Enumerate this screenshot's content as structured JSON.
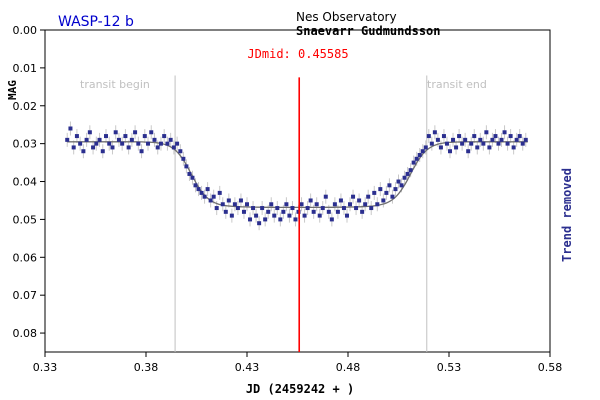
{
  "chart_data": {
    "type": "scatter",
    "title": "WASP-12 b",
    "observatory": "Nes Observatory",
    "observer": "Snaevarr Gudmundsson",
    "midline_label": "JDmid: 0.45585",
    "xlabel": "JD (2459242 + )",
    "ylabel": "MAG",
    "right_label": "Trend removed",
    "transit_begin_label": "transit begin",
    "transit_end_label": "transit end",
    "xlim": [
      0.33,
      0.58
    ],
    "ylim": [
      0.0,
      0.085
    ],
    "y_inverted": true,
    "x_ticks": [
      "0.33",
      "0.38",
      "0.43",
      "0.48",
      "0.53",
      "0.58"
    ],
    "y_ticks": [
      "0.00",
      "0.01",
      "0.02",
      "0.03",
      "0.04",
      "0.05",
      "0.06",
      "0.07",
      "0.08"
    ],
    "transit_begin": 0.3944,
    "transit_end": 0.519,
    "jd_mid": 0.45585,
    "baseline_mag": 0.0295,
    "depth_mag": 0.0465,
    "colors": {
      "points": "#2b2f8f",
      "errorbars": "#c8c8c8",
      "model": "#707070",
      "midline": "#ff0000",
      "transit_lines": "#c0c0c0",
      "title": "#0000cc",
      "right_label": "#2b2f8f"
    },
    "points": [
      [
        0.341,
        0.029
      ],
      [
        0.3426,
        0.026
      ],
      [
        0.3442,
        0.031
      ],
      [
        0.3458,
        0.028
      ],
      [
        0.3474,
        0.03
      ],
      [
        0.349,
        0.032
      ],
      [
        0.3506,
        0.029
      ],
      [
        0.3522,
        0.027
      ],
      [
        0.3538,
        0.031
      ],
      [
        0.3554,
        0.03
      ],
      [
        0.357,
        0.029
      ],
      [
        0.3586,
        0.032
      ],
      [
        0.3602,
        0.028
      ],
      [
        0.3618,
        0.03
      ],
      [
        0.3634,
        0.031
      ],
      [
        0.365,
        0.027
      ],
      [
        0.3666,
        0.029
      ],
      [
        0.3682,
        0.03
      ],
      [
        0.3698,
        0.028
      ],
      [
        0.3714,
        0.031
      ],
      [
        0.373,
        0.029
      ],
      [
        0.3746,
        0.027
      ],
      [
        0.3762,
        0.03
      ],
      [
        0.3778,
        0.032
      ],
      [
        0.3794,
        0.028
      ],
      [
        0.381,
        0.03
      ],
      [
        0.3826,
        0.027
      ],
      [
        0.3842,
        0.029
      ],
      [
        0.3858,
        0.031
      ],
      [
        0.3874,
        0.03
      ],
      [
        0.389,
        0.028
      ],
      [
        0.3906,
        0.03
      ],
      [
        0.3922,
        0.029
      ],
      [
        0.3938,
        0.031
      ],
      [
        0.3954,
        0.03
      ],
      [
        0.397,
        0.032
      ],
      [
        0.3985,
        0.034
      ],
      [
        0.4,
        0.036
      ],
      [
        0.4015,
        0.038
      ],
      [
        0.403,
        0.039
      ],
      [
        0.4045,
        0.041
      ],
      [
        0.406,
        0.042
      ],
      [
        0.4075,
        0.043
      ],
      [
        0.409,
        0.044
      ],
      [
        0.4105,
        0.042
      ],
      [
        0.412,
        0.045
      ],
      [
        0.4135,
        0.044
      ],
      [
        0.415,
        0.047
      ],
      [
        0.4165,
        0.043
      ],
      [
        0.418,
        0.046
      ],
      [
        0.4195,
        0.048
      ],
      [
        0.421,
        0.045
      ],
      [
        0.4225,
        0.049
      ],
      [
        0.424,
        0.046
      ],
      [
        0.4255,
        0.047
      ],
      [
        0.427,
        0.045
      ],
      [
        0.4285,
        0.048
      ],
      [
        0.43,
        0.046
      ],
      [
        0.4315,
        0.05
      ],
      [
        0.433,
        0.047
      ],
      [
        0.4345,
        0.049
      ],
      [
        0.436,
        0.051
      ],
      [
        0.4375,
        0.047
      ],
      [
        0.439,
        0.05
      ],
      [
        0.4405,
        0.048
      ],
      [
        0.442,
        0.046
      ],
      [
        0.4435,
        0.049
      ],
      [
        0.445,
        0.047
      ],
      [
        0.4465,
        0.05
      ],
      [
        0.448,
        0.048
      ],
      [
        0.4495,
        0.046
      ],
      [
        0.451,
        0.049
      ],
      [
        0.4525,
        0.047
      ],
      [
        0.454,
        0.05
      ],
      [
        0.4555,
        0.048
      ],
      [
        0.457,
        0.046
      ],
      [
        0.4585,
        0.049
      ],
      [
        0.46,
        0.047
      ],
      [
        0.4615,
        0.045
      ],
      [
        0.463,
        0.048
      ],
      [
        0.4645,
        0.046
      ],
      [
        0.466,
        0.049
      ],
      [
        0.4675,
        0.047
      ],
      [
        0.469,
        0.044
      ],
      [
        0.4705,
        0.048
      ],
      [
        0.472,
        0.05
      ],
      [
        0.4735,
        0.046
      ],
      [
        0.475,
        0.048
      ],
      [
        0.4765,
        0.045
      ],
      [
        0.478,
        0.047
      ],
      [
        0.4795,
        0.049
      ],
      [
        0.481,
        0.046
      ],
      [
        0.4825,
        0.044
      ],
      [
        0.484,
        0.047
      ],
      [
        0.4855,
        0.045
      ],
      [
        0.487,
        0.048
      ],
      [
        0.4885,
        0.046
      ],
      [
        0.49,
        0.044
      ],
      [
        0.4915,
        0.047
      ],
      [
        0.493,
        0.043
      ],
      [
        0.4945,
        0.046
      ],
      [
        0.496,
        0.042
      ],
      [
        0.4975,
        0.045
      ],
      [
        0.499,
        0.043
      ],
      [
        0.5005,
        0.041
      ],
      [
        0.502,
        0.044
      ],
      [
        0.5035,
        0.042
      ],
      [
        0.505,
        0.04
      ],
      [
        0.5065,
        0.041
      ],
      [
        0.508,
        0.039
      ],
      [
        0.5095,
        0.038
      ],
      [
        0.511,
        0.037
      ],
      [
        0.5125,
        0.035
      ],
      [
        0.514,
        0.034
      ],
      [
        0.5155,
        0.033
      ],
      [
        0.517,
        0.032
      ],
      [
        0.5185,
        0.031
      ],
      [
        0.52,
        0.028
      ],
      [
        0.5215,
        0.03
      ],
      [
        0.523,
        0.027
      ],
      [
        0.5245,
        0.029
      ],
      [
        0.526,
        0.031
      ],
      [
        0.5275,
        0.028
      ],
      [
        0.529,
        0.03
      ],
      [
        0.5305,
        0.032
      ],
      [
        0.532,
        0.029
      ],
      [
        0.5335,
        0.031
      ],
      [
        0.535,
        0.028
      ],
      [
        0.5365,
        0.03
      ],
      [
        0.538,
        0.029
      ],
      [
        0.5395,
        0.032
      ],
      [
        0.541,
        0.03
      ],
      [
        0.5425,
        0.028
      ],
      [
        0.544,
        0.031
      ],
      [
        0.5455,
        0.029
      ],
      [
        0.547,
        0.03
      ],
      [
        0.5485,
        0.027
      ],
      [
        0.55,
        0.031
      ],
      [
        0.5515,
        0.029
      ],
      [
        0.553,
        0.028
      ],
      [
        0.5545,
        0.03
      ],
      [
        0.556,
        0.029
      ],
      [
        0.5575,
        0.027
      ],
      [
        0.559,
        0.03
      ],
      [
        0.5605,
        0.028
      ],
      [
        0.562,
        0.031
      ],
      [
        0.5635,
        0.029
      ],
      [
        0.565,
        0.028
      ],
      [
        0.5665,
        0.03
      ],
      [
        0.568,
        0.029
      ]
    ]
  }
}
